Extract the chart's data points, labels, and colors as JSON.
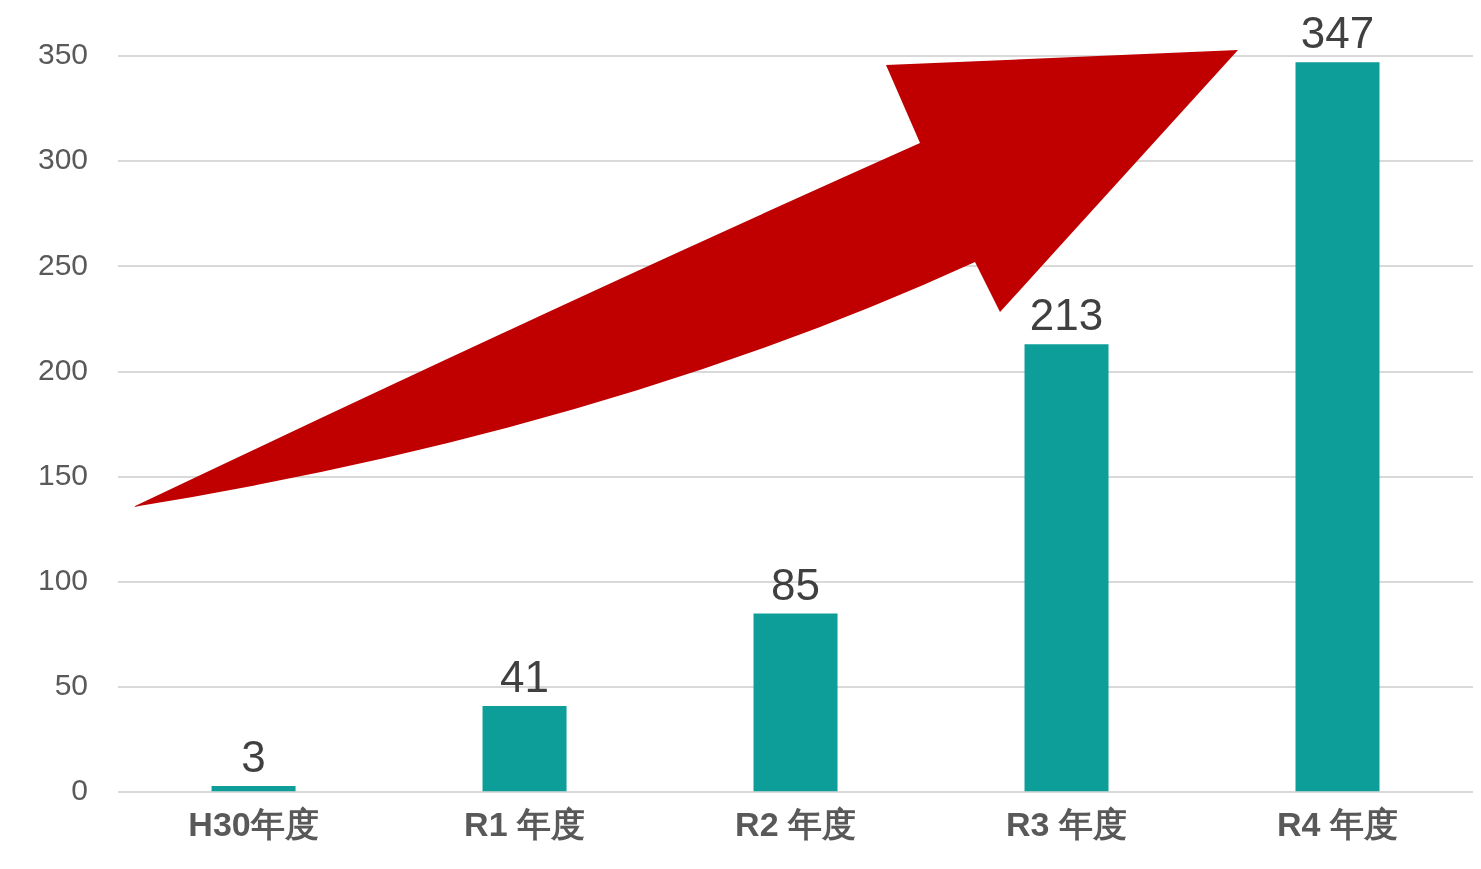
{
  "chart_data": {
    "type": "bar",
    "categories": [
      "H30年度",
      "R1 年度",
      "R2 年度",
      "R3 年度",
      "R4 年度"
    ],
    "values": [
      3,
      41,
      85,
      213,
      347
    ],
    "color": "#0e9e9a",
    "ylim": [
      0,
      350
    ],
    "yticks": [
      0,
      50,
      100,
      150,
      200,
      250,
      300,
      350
    ],
    "grid": "y",
    "data_labels": true
  }
}
